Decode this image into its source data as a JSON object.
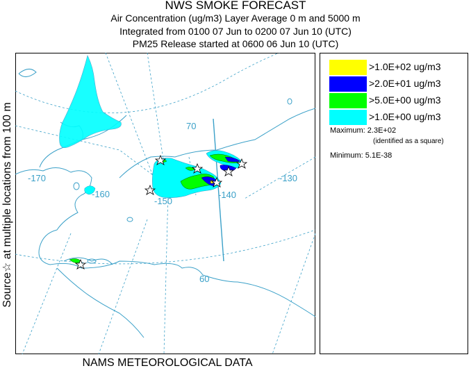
{
  "header": {
    "title": "NWS SMOKE FORECAST",
    "line2": "Air Concentration (ug/m3) Layer Average    0 m and  5000 m",
    "line3": "Integrated from 0100 07 Jun to 0200 07 Jun 10 (UTC)",
    "line4": "PM25 Release started at 0600 06 Jun 10 (UTC)"
  },
  "side_label": "Source☆    at multiple locations    from   100 m",
  "footer": "NAMS METEOROLOGICAL DATA",
  "map": {
    "graticule_labels": {
      "lat_70": "70",
      "lat_60": "60",
      "lon_170": "-170",
      "lon_160": "-160",
      "lon_150": "-150",
      "lon_140": "-140",
      "lon_130": "-130"
    },
    "colors": {
      "graticule": "#3aa0c8",
      "coast": "#3aa0c8",
      "plume_cyan": "#00ffff",
      "plume_green": "#00ff00",
      "plume_blue": "#0000ff",
      "plume_yellow": "#ffff00"
    }
  },
  "legend": {
    "items": [
      {
        "label": ">1.0E+02 ug/m3",
        "color": "#ffff00"
      },
      {
        "label": ">2.0E+01 ug/m3",
        "color": "#0000ff"
      },
      {
        "label": ">5.0E+00 ug/m3",
        "color": "#00ff00"
      },
      {
        "label": ">1.0E+00 ug/m3",
        "color": "#00ffff"
      }
    ],
    "maximum": "Maximum: 2.3E+02",
    "maximum_note": "(identified as a square)",
    "minimum": "Minimum: 5.1E-38"
  }
}
